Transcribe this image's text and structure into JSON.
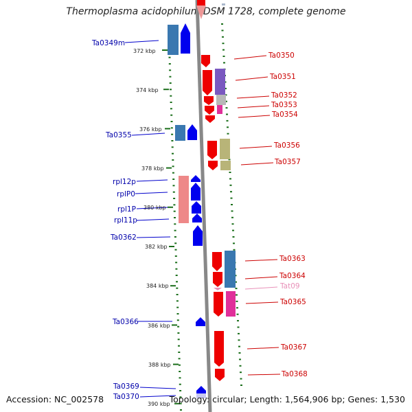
{
  "title": "Thermoplasma acidophilum DSM 1728, complete genome",
  "accession": "Accession: NC_002578",
  "topology": "Topology: circular; Length: 1,564,906 bp; Genes: 1,530",
  "colors": {
    "blue_label": "#0000aa",
    "red_label": "#cc0000",
    "pink_label": "#e890b8",
    "backbone": "#888888",
    "ruler": "#1a6e1a",
    "red": "#ee0000",
    "blue": "#0000ee",
    "steel": "#3a78b0",
    "purple": "#7a58c0",
    "silver": "#b8b8b8",
    "magenta": "#e0309a",
    "khaki": "#b8b478",
    "salmon": "#ee8888"
  },
  "ruler_labels": [
    "372 kbp",
    "374 kbp",
    "376 kbp",
    "378 kbp",
    "380 kbp",
    "382 kbp",
    "384 kbp",
    "386 kbp",
    "388 kbp",
    "390 kbp"
  ],
  "left_genes": [
    "Ta0349m",
    "Ta0355",
    "rpl12p",
    "rplP0",
    "rpl1P",
    "rpl11p",
    "Ta0362",
    "Ta0366",
    "Ta0369",
    "Ta0370"
  ],
  "right_genes": [
    "Ta0350",
    "Ta0351",
    "Ta0352",
    "Ta0353",
    "Ta0354",
    "Ta0356",
    "Ta0357",
    "Ta0363",
    "Ta0364",
    "Tat09",
    "Ta0365",
    "Ta0367",
    "Ta0368"
  ]
}
